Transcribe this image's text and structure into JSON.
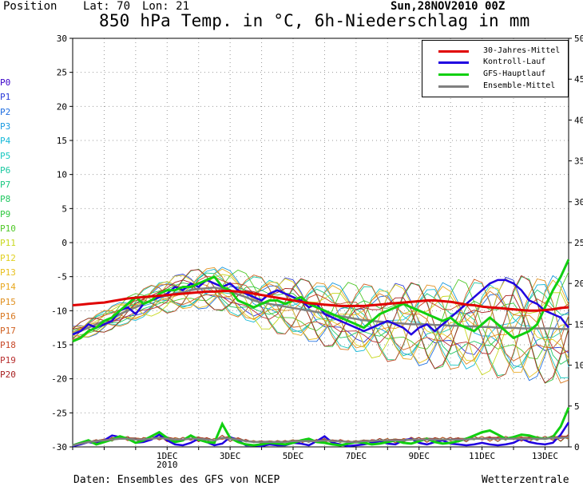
{
  "header": {
    "position_label": "Position",
    "lat_label": "Lat: 70",
    "lon_label": "Lon: 21",
    "title": "850 hPa Temp. in °C, 6h-Niederschlag in mm",
    "date": "Sun,28NOV2010 00Z"
  },
  "members": [
    "P0",
    "P1",
    "P2",
    "P3",
    "P4",
    "P5",
    "P6",
    "P7",
    "P8",
    "P9",
    "P10",
    "P11",
    "P12",
    "P13",
    "P14",
    "P15",
    "P16",
    "P17",
    "P18",
    "P19",
    "P20"
  ],
  "member_colors": [
    "#3a00c8",
    "#2a3ad8",
    "#1f6ee0",
    "#1a9ae0",
    "#16b8d8",
    "#1ac8c0",
    "#1ac8a0",
    "#1ac880",
    "#20c860",
    "#30c840",
    "#50c828",
    "#c8d820",
    "#e0d020",
    "#e8c020",
    "#e8a820",
    "#e09020",
    "#d87820",
    "#d06020",
    "#c84828",
    "#b83030",
    "#a82020"
  ],
  "footer": {
    "left": "Daten: Ensembles des GFS von NCEP",
    "right": "Wetterzentrale"
  },
  "colors": {
    "mittel": "#e00000",
    "kontroll": "#2000e0",
    "haupt": "#10d010",
    "ensemble": "#808080"
  },
  "chart_data": {
    "type": "line",
    "title": "850 hPa Temp. in °C, 6h-Niederschlag in mm",
    "xlabel": "",
    "ylabel": "",
    "x_start": "28NOV2010 00Z",
    "x_step_hours": 6,
    "x_ticks": [
      "1DEC",
      "3DEC",
      "5DEC",
      "7DEC",
      "9DEC",
      "11DEC",
      "13DEC"
    ],
    "x_tick_positions": [
      12,
      20,
      28,
      36,
      44,
      52,
      60
    ],
    "x_year_label": "2010",
    "y_left_range": [
      -30,
      30
    ],
    "y_left_ticks": [
      30,
      25,
      20,
      15,
      10,
      5,
      0,
      -5,
      -10,
      -15,
      -20,
      -25,
      -30
    ],
    "y_right_range": [
      0,
      50
    ],
    "y_right_ticks": [
      50,
      45,
      40,
      35,
      30,
      25,
      20,
      15,
      10,
      5,
      0
    ],
    "grid": true,
    "legend": {
      "position": "top-right",
      "entries": [
        "30-Jahres-Mittel",
        "Kontroll-Lauf",
        "GFS-Hauptlauf",
        "Ensemble-Mittel"
      ]
    },
    "series": [
      {
        "name": "30-Jahres-Mittel",
        "axis": "left",
        "values": [
          -9.2,
          -9.1,
          -9.0,
          -8.9,
          -8.8,
          -8.6,
          -8.4,
          -8.2,
          -8.1,
          -8.0,
          -7.9,
          -7.8,
          -7.7,
          -7.6,
          -7.5,
          -7.4,
          -7.3,
          -7.2,
          -7.2,
          -7.1,
          -7.1,
          -7.2,
          -7.3,
          -7.5,
          -7.7,
          -7.9,
          -8.1,
          -8.3,
          -8.5,
          -8.7,
          -8.9,
          -9.0,
          -9.1,
          -9.2,
          -9.3,
          -9.3,
          -9.3,
          -9.3,
          -9.2,
          -9.1,
          -9.0,
          -8.9,
          -8.8,
          -8.7,
          -8.6,
          -8.5,
          -8.5,
          -8.6,
          -8.7,
          -8.9,
          -9.1,
          -9.2,
          -9.4,
          -9.5,
          -9.6,
          -9.7,
          -9.8,
          -9.9,
          -10.0,
          -10.0,
          -9.9,
          -9.8,
          -9.6,
          -9.5
        ]
      },
      {
        "name": "Kontroll-Lauf",
        "axis": "left",
        "values": [
          -13.5,
          -13.0,
          -12.0,
          -12.5,
          -12.0,
          -11.5,
          -10.0,
          -9.5,
          -10.5,
          -9.0,
          -8.5,
          -8.0,
          -7.5,
          -6.5,
          -7.0,
          -6.0,
          -6.5,
          -5.5,
          -6.0,
          -6.5,
          -6.0,
          -7.0,
          -7.5,
          -8.0,
          -8.5,
          -7.5,
          -7.0,
          -7.5,
          -8.0,
          -8.5,
          -9.5,
          -9.0,
          -10.5,
          -11.0,
          -11.5,
          -12.0,
          -12.5,
          -13.0,
          -12.5,
          -12.0,
          -11.5,
          -12.0,
          -12.5,
          -13.5,
          -12.5,
          -12.0,
          -13.0,
          -12.0,
          -11.0,
          -10.0,
          -9.0,
          -8.0,
          -7.0,
          -6.0,
          -5.5,
          -5.5,
          -6.0,
          -7.0,
          -8.5,
          -9.0,
          -10.0,
          -10.5,
          -11.0,
          -12.5
        ]
      },
      {
        "name": "GFS-Hauptlauf",
        "axis": "left",
        "values": [
          -14.5,
          -14.0,
          -13.0,
          -12.5,
          -11.5,
          -11.0,
          -10.0,
          -9.0,
          -8.0,
          -9.0,
          -8.5,
          -7.5,
          -7.0,
          -7.0,
          -6.5,
          -6.5,
          -6.0,
          -5.5,
          -5.0,
          -6.5,
          -7.0,
          -8.5,
          -9.0,
          -9.5,
          -9.0,
          -8.5,
          -8.5,
          -9.0,
          -8.5,
          -8.0,
          -9.0,
          -9.5,
          -10.0,
          -10.5,
          -11.0,
          -11.5,
          -12.0,
          -12.5,
          -11.5,
          -10.5,
          -10.0,
          -9.5,
          -9.0,
          -9.5,
          -10.0,
          -10.5,
          -11.0,
          -11.5,
          -11.0,
          -12.0,
          -12.5,
          -13.0,
          -12.0,
          -11.0,
          -12.0,
          -13.0,
          -14.0,
          -13.5,
          -13.0,
          -12.0,
          -9.5,
          -7.0,
          -5.0,
          -2.5
        ]
      },
      {
        "name": "Ensemble-Mittel",
        "axis": "left",
        "values": [
          -13.5,
          -13.0,
          -12.5,
          -12.0,
          -11.5,
          -11.0,
          -10.5,
          -10.0,
          -9.5,
          -9.0,
          -8.5,
          -8.0,
          -7.8,
          -7.5,
          -7.3,
          -7.0,
          -6.8,
          -6.7,
          -6.6,
          -6.8,
          -7.2,
          -7.6,
          -8.0,
          -8.5,
          -8.8,
          -9.0,
          -9.2,
          -9.4,
          -9.6,
          -9.8,
          -10.0,
          -10.2,
          -10.4,
          -10.6,
          -10.8,
          -11.0,
          -11.2,
          -11.4,
          -11.5,
          -11.6,
          -11.7,
          -11.8,
          -11.9,
          -12.0,
          -12.0,
          -12.0,
          -12.1,
          -12.1,
          -12.2,
          -12.2,
          -12.3,
          -12.3,
          -12.4,
          -12.4,
          -12.5,
          -12.5,
          -12.5,
          -12.6,
          -12.6,
          -12.6,
          -12.6,
          -12.6,
          -12.7,
          -12.7
        ]
      }
    ],
    "precip_series": [
      {
        "name": "Kontroll-Lauf",
        "axis": "right",
        "values": [
          0.1,
          0.3,
          0.6,
          0.4,
          0.8,
          1.4,
          1.2,
          1.0,
          0.5,
          0.6,
          0.9,
          1.5,
          0.8,
          0.3,
          0.2,
          0.5,
          1.0,
          0.6,
          0.2,
          0.4,
          1.2,
          0.8,
          0.2,
          0.2,
          0.1,
          0.3,
          0.2,
          0.2,
          0.5,
          0.4,
          0.2,
          0.7,
          1.3,
          0.5,
          0.3,
          0.1,
          0.2,
          0.3,
          0.5,
          0.7,
          0.4,
          0.3,
          0.8,
          1.0,
          0.5,
          0.3,
          0.6,
          0.8,
          0.4,
          0.3,
          0.2,
          0.3,
          0.5,
          0.3,
          0.2,
          0.3,
          0.5,
          1.0,
          0.6,
          0.4,
          0.3,
          0.5,
          1.5,
          3.0
        ]
      },
      {
        "name": "GFS-Hauptlauf",
        "axis": "right",
        "values": [
          0.2,
          0.5,
          0.8,
          0.3,
          0.6,
          0.9,
          1.3,
          1.0,
          0.5,
          0.8,
          1.3,
          1.8,
          1.1,
          0.6,
          0.8,
          1.4,
          0.9,
          0.6,
          0.5,
          2.8,
          1.1,
          0.6,
          0.3,
          0.2,
          0.3,
          0.5,
          0.4,
          0.3,
          0.5,
          0.8,
          1.0,
          0.6,
          0.5,
          0.3,
          0.2,
          0.4,
          0.6,
          0.5,
          0.3,
          0.4,
          0.6,
          0.8,
          0.5,
          0.4,
          0.7,
          1.0,
          0.6,
          0.4,
          0.5,
          0.7,
          1.0,
          1.4,
          1.8,
          2.0,
          1.5,
          1.0,
          1.2,
          1.5,
          1.4,
          1.1,
          1.0,
          1.2,
          2.5,
          4.8
        ]
      },
      {
        "name": "Ensemble-Mittel",
        "axis": "right",
        "values": [
          0.2,
          0.4,
          0.6,
          0.7,
          0.8,
          0.9,
          1.0,
          1.0,
          0.9,
          0.9,
          1.0,
          1.1,
          1.0,
          0.9,
          0.9,
          1.0,
          1.0,
          0.9,
          0.8,
          1.1,
          1.0,
          0.9,
          0.7,
          0.6,
          0.6,
          0.6,
          0.6,
          0.6,
          0.7,
          0.7,
          0.7,
          0.7,
          0.8,
          0.7,
          0.7,
          0.6,
          0.6,
          0.7,
          0.7,
          0.8,
          0.8,
          0.8,
          0.8,
          0.9,
          0.9,
          0.9,
          0.9,
          0.9,
          0.9,
          0.9,
          0.9,
          1.0,
          1.0,
          1.0,
          1.0,
          1.0,
          1.0,
          1.0,
          1.0,
          1.0,
          1.0,
          1.1,
          1.1,
          1.2
        ]
      }
    ]
  }
}
